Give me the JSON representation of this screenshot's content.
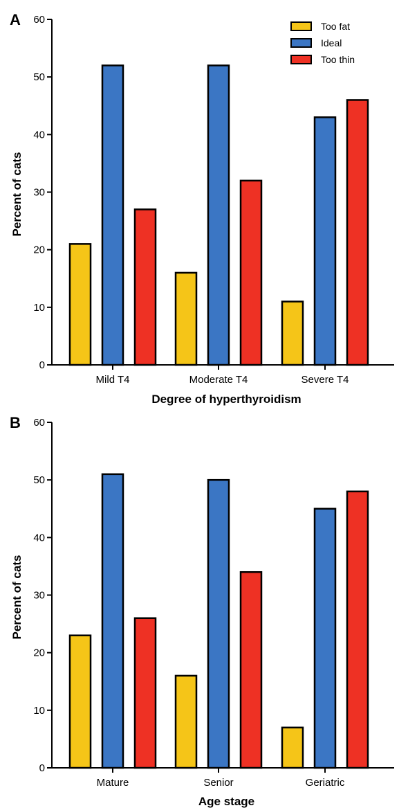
{
  "chart_data": [
    {
      "type": "bar",
      "panel": "A",
      "categories": [
        "Mild T4",
        "Moderate T4",
        "Severe T4"
      ],
      "series": [
        {
          "name": "Too fat",
          "color": "#f5c518",
          "values": [
            21,
            16,
            11
          ]
        },
        {
          "name": "Ideal",
          "color": "#3b76c4",
          "values": [
            52,
            52,
            43
          ]
        },
        {
          "name": "Too thin",
          "color": "#ee3124",
          "values": [
            27,
            32,
            46
          ]
        }
      ],
      "xlabel": "Degree of hyperthyroidism",
      "ylabel": "Percent of cats",
      "ylim": [
        0,
        60
      ],
      "yticks": [
        0,
        10,
        20,
        30,
        40,
        50,
        60
      ],
      "legend": "top-right",
      "grid": false
    },
    {
      "type": "bar",
      "panel": "B",
      "categories": [
        "Mature",
        "Senior",
        "Geriatric"
      ],
      "series": [
        {
          "name": "Too fat",
          "color": "#f5c518",
          "values": [
            23,
            16,
            7
          ]
        },
        {
          "name": "Ideal",
          "color": "#3b76c4",
          "values": [
            51,
            50,
            45
          ]
        },
        {
          "name": "Too thin",
          "color": "#ee3124",
          "values": [
            26,
            34,
            48
          ]
        }
      ],
      "xlabel": "Age stage",
      "ylabel": "Percent of cats",
      "ylim": [
        0,
        60
      ],
      "yticks": [
        0,
        10,
        20,
        30,
        40,
        50,
        60
      ],
      "grid": false
    }
  ]
}
